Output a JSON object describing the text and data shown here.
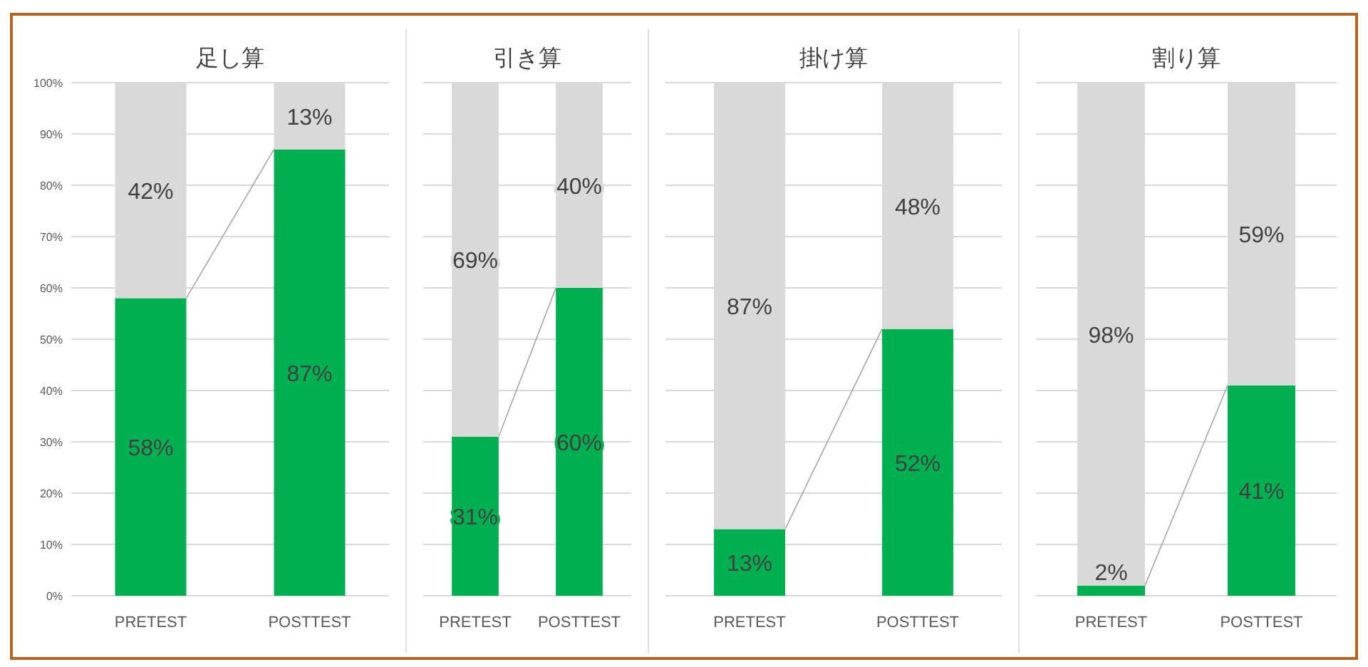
{
  "chart_data": [
    {
      "type": "bar",
      "stacked": true,
      "title": "足し算",
      "categories": [
        "PRETEST",
        "POSTTEST"
      ],
      "ylim": [
        0,
        100
      ],
      "yticks": [
        {
          "value": 0,
          "label": "0%"
        },
        {
          "value": 10,
          "label": "10%"
        },
        {
          "value": 20,
          "label": "20%"
        },
        {
          "value": 30,
          "label": "30%"
        },
        {
          "value": 40,
          "label": "40%"
        },
        {
          "value": 50,
          "label": "50%"
        },
        {
          "value": 60,
          "label": "60%"
        },
        {
          "value": 70,
          "label": "70%"
        },
        {
          "value": 80,
          "label": "80%"
        },
        {
          "value": 90,
          "label": "90%"
        },
        {
          "value": 100,
          "label": "100%"
        }
      ],
      "grid": "y",
      "series": [
        {
          "color": "#00b050",
          "values": [
            58,
            87
          ],
          "value_labels": [
            "58%",
            "87%"
          ]
        },
        {
          "color": "#d9d9d9",
          "values": [
            42,
            13
          ],
          "value_labels": [
            "42%",
            "13%"
          ]
        }
      ]
    },
    {
      "type": "bar",
      "stacked": true,
      "title": "引き算",
      "categories": [
        "PRETEST",
        "POSTTEST"
      ],
      "ylim": [
        0,
        100
      ],
      "yticks": [
        0,
        10,
        20,
        30,
        40,
        50,
        60,
        70,
        80,
        90,
        100
      ],
      "tick_labels": "x",
      "grid": "y",
      "series": [
        {
          "color": "#00b050",
          "values": [
            31,
            60
          ],
          "value_labels": [
            "31%",
            "60%"
          ]
        },
        {
          "color": "#d9d9d9",
          "values": [
            69,
            40
          ],
          "value_labels": [
            "69%",
            "40%"
          ]
        }
      ]
    },
    {
      "type": "bar",
      "stacked": true,
      "title": "掛け算",
      "categories": [
        "PRETEST",
        "POSTTEST"
      ],
      "ylim": [
        0,
        100
      ],
      "yticks": [
        0,
        10,
        20,
        30,
        40,
        50,
        60,
        70,
        80,
        90,
        100
      ],
      "tick_labels": "x",
      "grid": "y",
      "series": [
        {
          "color": "#00b050",
          "values": [
            13,
            52
          ],
          "value_labels": [
            "13%",
            "52%"
          ]
        },
        {
          "color": "#d9d9d9",
          "values": [
            87,
            48
          ],
          "value_labels": [
            "87%",
            "48%"
          ]
        }
      ]
    },
    {
      "type": "bar",
      "stacked": true,
      "title": "割り算",
      "categories": [
        "PRETEST",
        "POSTTEST"
      ],
      "ylim": [
        0,
        100
      ],
      "yticks": [
        0,
        10,
        20,
        30,
        40,
        50,
        60,
        70,
        80,
        90,
        100
      ],
      "tick_labels": "x",
      "grid": "y",
      "series": [
        {
          "color": "#00b050",
          "values": [
            2,
            41
          ],
          "value_labels": [
            "2%",
            "41%"
          ]
        },
        {
          "color": "#d9d9d9",
          "values": [
            98,
            59
          ],
          "value_labels": [
            "98%",
            "59%"
          ]
        }
      ]
    }
  ]
}
